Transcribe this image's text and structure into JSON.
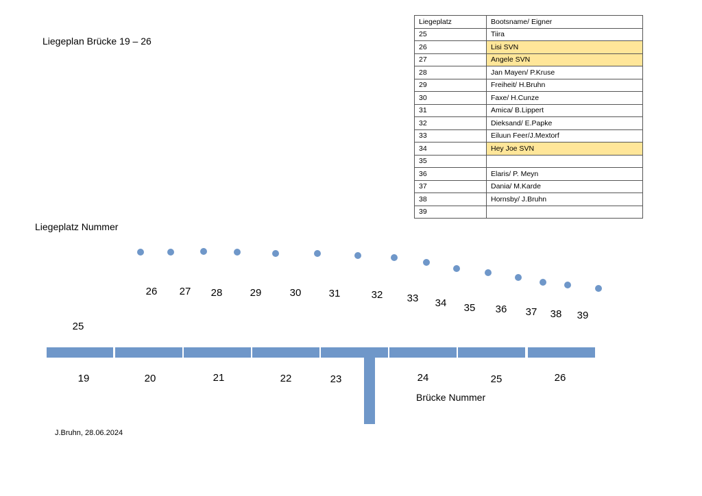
{
  "title": "Liegeplan Brücke 19 – 26",
  "label_liegeplatz": "Liegeplatz Nummer",
  "label_bruecke": "Brücke Nummer",
  "author": "J.Bruhn, 28.06.2024",
  "colors": {
    "pier": "#6f97c9",
    "highlight": "#ffe699"
  },
  "table": {
    "headers": [
      "Liegeplatz",
      "Bootsname/ Eigner"
    ],
    "rows": [
      {
        "berth": "25",
        "name": "Tiira",
        "highlight": false
      },
      {
        "berth": "26",
        "name": "Lisi SVN",
        "highlight": true
      },
      {
        "berth": "27",
        "name": "Angele SVN",
        "highlight": true
      },
      {
        "berth": "28",
        "name": "Jan Mayen/ P.Kruse",
        "highlight": false
      },
      {
        "berth": "29",
        "name": "Freiheit/ H.Bruhn",
        "highlight": false
      },
      {
        "berth": "30",
        "name": "Faxe/ H.Cunze",
        "highlight": false
      },
      {
        "berth": "31",
        "name": "Amica/ B.Lippert",
        "highlight": false
      },
      {
        "berth": "32",
        "name": "Dieksand/ E.Papke",
        "highlight": false
      },
      {
        "berth": "33",
        "name": "Eiluun Feer/J.Mextorf",
        "highlight": false
      },
      {
        "berth": "34",
        "name": " Hey Joe SVN",
        "highlight": true
      },
      {
        "berth": "35",
        "name": "",
        "highlight": false
      },
      {
        "berth": "36",
        "name": "Elaris/ P. Meyn",
        "highlight": false
      },
      {
        "berth": "37",
        "name": "Dania/ M.Karde",
        "highlight": false
      },
      {
        "berth": "38",
        "name": "Hornsby/ J.Bruhn",
        "highlight": false
      },
      {
        "berth": "39",
        "name": "",
        "highlight": false
      }
    ]
  },
  "berth_numbers": [
    "25",
    "26",
    "27",
    "28",
    "29",
    "30",
    "31",
    "32",
    "33",
    "34",
    "35",
    "36",
    "37",
    "38",
    "39"
  ],
  "bridge_numbers": [
    "19",
    "20",
    "21",
    "22",
    "23",
    "24",
    "25",
    "26"
  ]
}
